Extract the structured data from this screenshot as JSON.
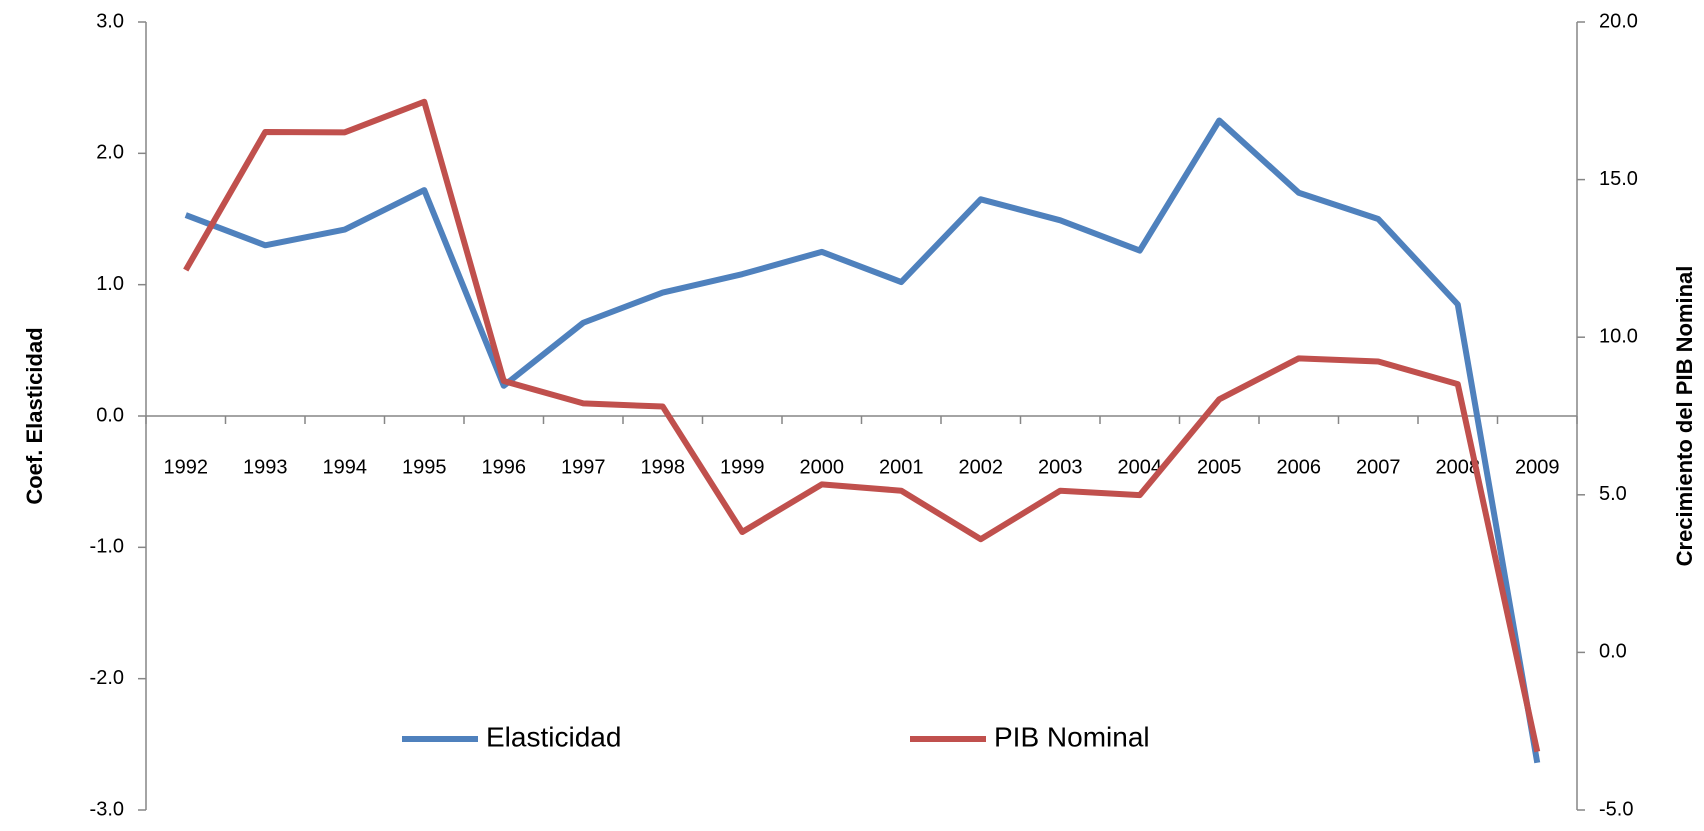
{
  "chart_data": {
    "type": "line",
    "ylabel": "Coef. Elasticidad",
    "y2label": "Crecimiento del PIB Nominal",
    "categories": [
      "1992",
      "1993",
      "1994",
      "1995",
      "1996",
      "1997",
      "1998",
      "1999",
      "2000",
      "2001",
      "2002",
      "2003",
      "2004",
      "2005",
      "2006",
      "2007",
      "2008",
      "2009"
    ],
    "series": [
      {
        "name": "Elasticidad",
        "color": "#4f81bd",
        "values": [
          1.53,
          1.3,
          1.42,
          1.72,
          0.23,
          0.71,
          0.94,
          1.08,
          1.25,
          1.02,
          1.65,
          1.49,
          1.26,
          2.25,
          1.7,
          1.5,
          0.85,
          -2.64
        ]
      },
      {
        "name": "PIB Nominal",
        "color": "#c0504d",
        "axis": "y2",
        "values": [
          12.13,
          16.51,
          16.5,
          17.47,
          8.61,
          7.9,
          7.8,
          3.82,
          5.33,
          5.13,
          3.59,
          5.13,
          4.99,
          8.03,
          9.33,
          9.23,
          8.51,
          -3.15
        ]
      }
    ],
    "ylim": [
      -3,
      3
    ],
    "yticks": [
      {
        "value": -3,
        "label": "-3.0"
      },
      {
        "value": -2,
        "label": "-2.0"
      },
      {
        "value": -1,
        "label": "-1.0"
      },
      {
        "value": 0,
        "label": "0.0"
      },
      {
        "value": 1,
        "label": "1.0"
      },
      {
        "value": 2,
        "label": "2.0"
      },
      {
        "value": 3,
        "label": "3.0"
      }
    ],
    "y2lim": [
      -5,
      20
    ],
    "y2ticks": [
      {
        "value": -5,
        "label": "-5.0"
      },
      {
        "value": 0,
        "label": "0.0"
      },
      {
        "value": 5,
        "label": "5.0"
      },
      {
        "value": 10,
        "label": "10.0"
      },
      {
        "value": 15,
        "label": "15.0"
      },
      {
        "value": 20,
        "label": "20.0"
      }
    ],
    "grid": false,
    "legend": "bottom"
  }
}
